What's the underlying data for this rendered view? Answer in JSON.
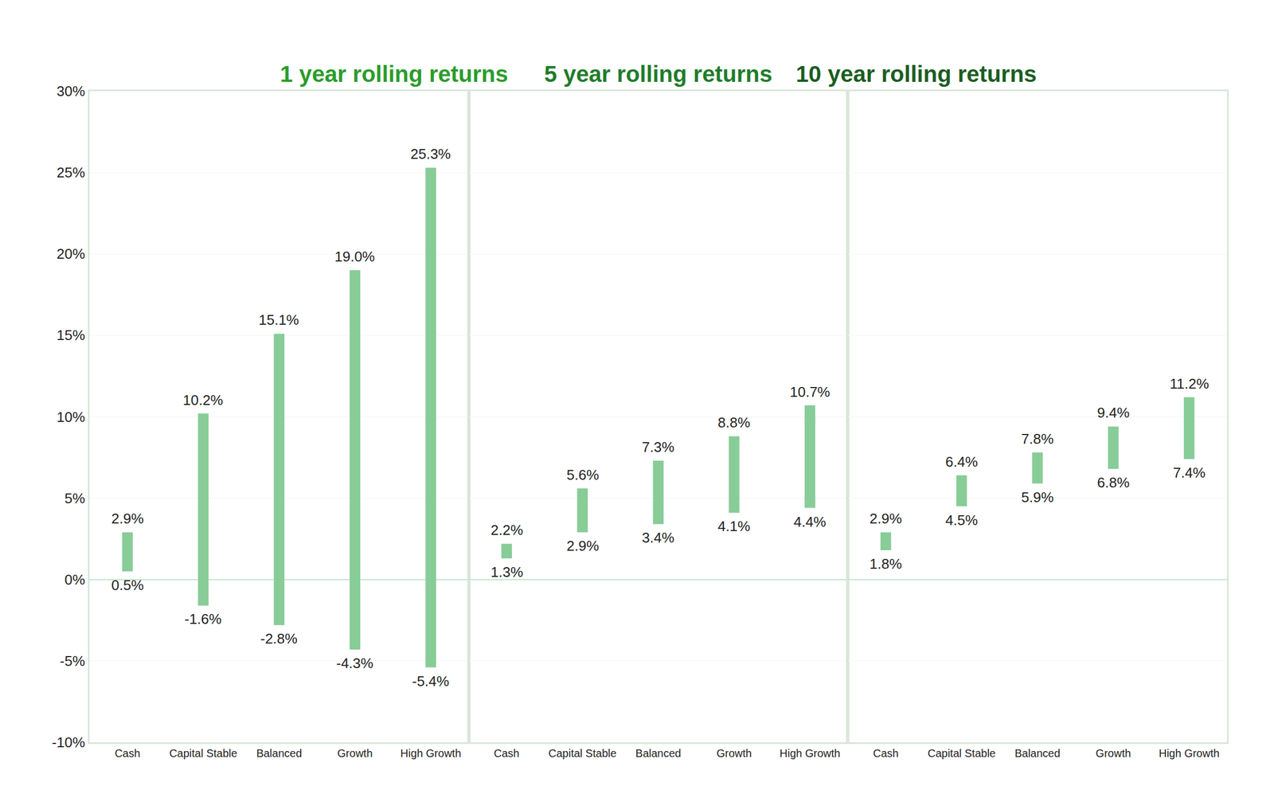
{
  "chart_data": [
    {
      "type": "bar",
      "title": "1 year rolling returns",
      "title_color": "#2a9d2a",
      "categories": [
        "Cash",
        "Capital Stable",
        "Balanced",
        "Growth",
        "High Growth"
      ],
      "low": [
        0.5,
        -1.6,
        -2.8,
        -4.3,
        -5.4
      ],
      "high": [
        2.9,
        10.2,
        15.1,
        19.0,
        25.3
      ],
      "low_labels": [
        "0.5%",
        "-1.6%",
        "-2.8%",
        "-4.3%",
        "-5.4%"
      ],
      "high_labels": [
        "2.9%",
        "10.2%",
        "15.1%",
        "19.0%",
        "25.3%"
      ],
      "color": "#88cc98",
      "data_labels": true,
      "grid": true,
      "tick_labels": true,
      "ylim": [
        -10,
        30
      ],
      "yticks": [
        {
          "value": -10,
          "label": "-10%"
        },
        {
          "value": -5,
          "label": "-5%"
        },
        {
          "value": 0,
          "label": "0%"
        },
        {
          "value": 5,
          "label": "5%"
        },
        {
          "value": 10,
          "label": "10%"
        },
        {
          "value": 15,
          "label": "15%"
        },
        {
          "value": 20,
          "label": "20%"
        },
        {
          "value": 25,
          "label": "25%"
        },
        {
          "value": 30,
          "label": "30%"
        }
      ]
    },
    {
      "type": "bar",
      "title": "5 year rolling returns",
      "title_color": "#1f7d2a",
      "categories": [
        "Cash",
        "Capital Stable",
        "Balanced",
        "Growth",
        "High Growth"
      ],
      "low": [
        1.3,
        2.9,
        3.4,
        4.1,
        4.4
      ],
      "high": [
        2.2,
        5.6,
        7.3,
        8.8,
        10.7
      ],
      "low_labels": [
        "1.3%",
        "2.9%",
        "3.4%",
        "4.1%",
        "4.4%"
      ],
      "high_labels": [
        "2.2%",
        "5.6%",
        "7.3%",
        "8.8%",
        "10.7%"
      ],
      "color": "#88cc98",
      "data_labels": true,
      "grid": true,
      "tick_labels": "x",
      "ylim": [
        -10,
        30
      ]
    },
    {
      "type": "bar",
      "title": "10 year rolling returns",
      "title_color": "#1a5e22",
      "categories": [
        "Cash",
        "Capital Stable",
        "Balanced",
        "Growth",
        "High Growth"
      ],
      "low": [
        1.8,
        4.5,
        5.9,
        6.8,
        7.4
      ],
      "high": [
        2.9,
        6.4,
        7.8,
        9.4,
        11.2
      ],
      "low_labels": [
        "1.8%",
        "4.5%",
        "5.9%",
        "6.8%",
        "7.4%"
      ],
      "high_labels": [
        "2.9%",
        "6.4%",
        "7.8%",
        "9.4%",
        "11.2%"
      ],
      "color": "#88cc98",
      "data_labels": true,
      "grid": true,
      "tick_labels": "x",
      "ylim": [
        -10,
        30
      ]
    }
  ]
}
